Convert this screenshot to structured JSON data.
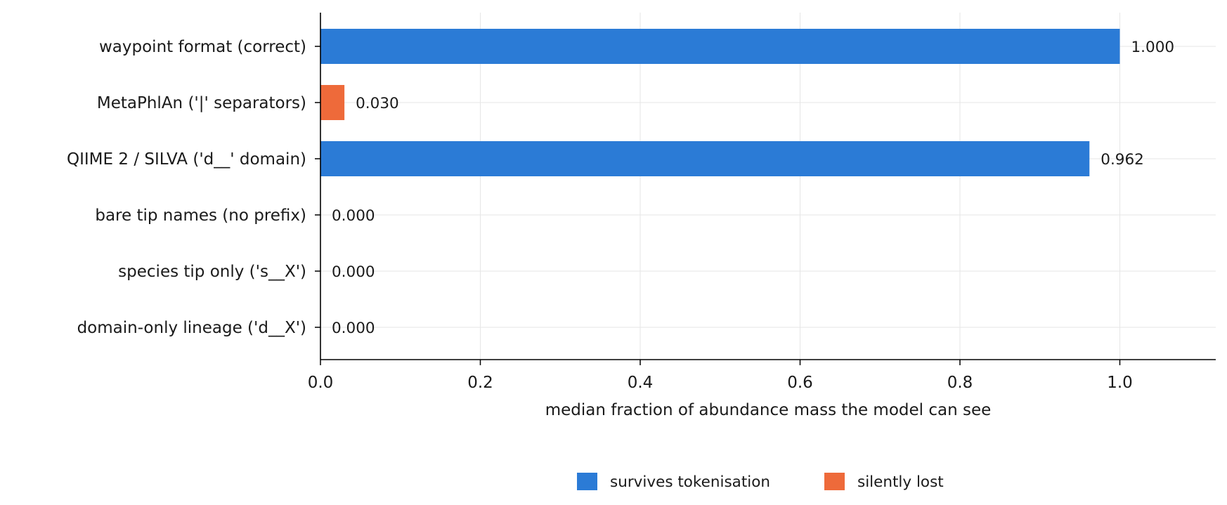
{
  "chart_data": {
    "type": "bar",
    "orientation": "horizontal",
    "categories": [
      "waypoint format (correct)",
      "MetaPhlAn ('|' separators)",
      "QIIME 2 / SILVA ('d__' domain)",
      "bare tip names (no prefix)",
      "species tip only ('s__X')",
      "domain-only lineage ('d__X')"
    ],
    "values": [
      1.0,
      0.03,
      0.962,
      0.0,
      0.0,
      0.0
    ],
    "value_labels": [
      "1.000",
      "0.030",
      "0.962",
      "0.000",
      "0.000",
      "0.000"
    ],
    "bar_status": [
      "survives",
      "lost",
      "survives",
      "survives",
      "survives",
      "survives"
    ],
    "title": "",
    "xlabel": "median fraction of abundance mass the model can see",
    "ylabel": "",
    "xlim": [
      0,
      1.12
    ],
    "xticks": [
      0.0,
      0.2,
      0.4,
      0.6,
      0.8,
      1.0
    ],
    "xtick_labels": [
      "0.0",
      "0.2",
      "0.4",
      "0.6",
      "0.8",
      "1.0"
    ],
    "grid": true,
    "legend": {
      "placement": "bottom-center",
      "entries": [
        {
          "label": "survives tokenisation",
          "color": "#2b7bd6"
        },
        {
          "label": "silently lost",
          "color": "#ee6a3a"
        }
      ]
    },
    "colors": {
      "survives": "#2b7bd6",
      "lost": "#ee6a3a"
    }
  }
}
